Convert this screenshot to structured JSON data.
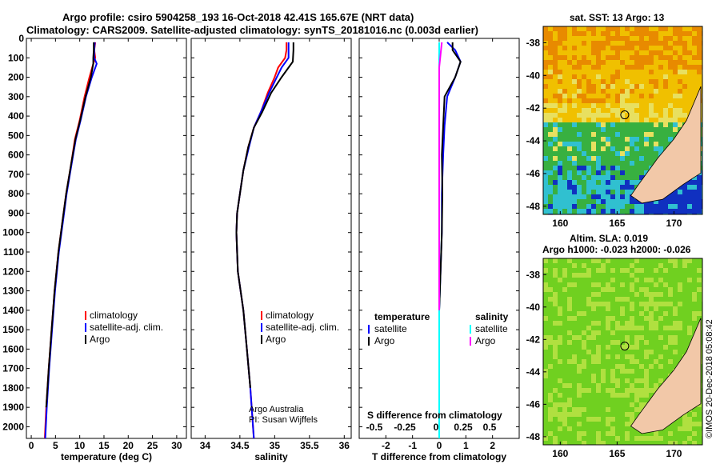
{
  "header": {
    "line1": "Argo profile: csiro 5904258_193 16-Oct-2018 42.41S 165.67E (NRT data)",
    "line2": "Climatology: CARS2009. Satellite-adjusted climatology: synTS_20181016.nc (0.003d earlier)"
  },
  "depth_ticks": [
    "0",
    "100",
    "200",
    "300",
    "400",
    "500",
    "600",
    "700",
    "800",
    "900",
    "1000",
    "1100",
    "1200",
    "1300",
    "1400",
    "1500",
    "1600",
    "1700",
    "1800",
    "1900",
    "2000"
  ],
  "chart_data": [
    {
      "type": "line",
      "name": "temperature",
      "xlabel": "temperature (deg C)",
      "ylabel": "depth",
      "xlim": [
        -1,
        32
      ],
      "ylim": [
        2060,
        0
      ],
      "xticks": [
        "0",
        "5",
        "10",
        "15",
        "20",
        "25",
        "30"
      ],
      "legend": [
        "climatology",
        "satellite-adj. clim.",
        "Argo"
      ],
      "series": [
        {
          "name": "climatology",
          "color": "#ff0000",
          "points": [
            [
              13.2,
              20
            ],
            [
              13.0,
              60
            ],
            [
              13.2,
              100
            ],
            [
              12.8,
              130
            ],
            [
              12.0,
              200
            ],
            [
              11.0,
              300
            ],
            [
              10.0,
              420
            ],
            [
              9.0,
              520
            ],
            [
              8.2,
              650
            ],
            [
              7.2,
              800
            ],
            [
              6.4,
              950
            ],
            [
              5.6,
              1100
            ],
            [
              4.8,
              1300
            ],
            [
              4.2,
              1500
            ],
            [
              3.6,
              1700
            ],
            [
              3.1,
              1900
            ],
            [
              2.8,
              2060
            ]
          ]
        },
        {
          "name": "satellite-adj. clim.",
          "color": "#0000ff",
          "points": [
            [
              13.1,
              20
            ],
            [
              13.0,
              60
            ],
            [
              13.0,
              100
            ],
            [
              13.5,
              130
            ],
            [
              12.5,
              200
            ],
            [
              11.3,
              300
            ],
            [
              10.2,
              420
            ],
            [
              9.2,
              520
            ],
            [
              8.3,
              650
            ],
            [
              7.3,
              800
            ],
            [
              6.5,
              950
            ],
            [
              5.7,
              1100
            ],
            [
              4.9,
              1300
            ],
            [
              4.3,
              1500
            ],
            [
              3.7,
              1700
            ],
            [
              3.2,
              1900
            ],
            [
              2.9,
              2060
            ]
          ]
        },
        {
          "name": "Argo",
          "color": "#000000",
          "points": [
            [
              12.9,
              20
            ],
            [
              12.9,
              60
            ],
            [
              12.8,
              100
            ],
            [
              12.8,
              130
            ],
            [
              12.3,
              200
            ],
            [
              11.2,
              300
            ],
            [
              10.1,
              420
            ],
            [
              9.1,
              520
            ],
            [
              8.2,
              650
            ],
            [
              7.2,
              800
            ],
            [
              6.4,
              950
            ],
            [
              5.6,
              1100
            ],
            [
              4.8,
              1300
            ],
            [
              4.2,
              1500
            ],
            [
              3.6,
              1700
            ],
            [
              3.1,
              1900
            ]
          ]
        }
      ]
    },
    {
      "type": "line",
      "name": "salinity",
      "xlabel": "salinity",
      "ylabel": "depth",
      "xlim": [
        33.8,
        36.1
      ],
      "ylim": [
        2060,
        0
      ],
      "xticks": [
        "34",
        "34.5",
        "35",
        "35.5",
        "36"
      ],
      "legend": [
        "climatology",
        "satellite-adj. clim.",
        "Argo"
      ],
      "annotations": [
        "Argo Australia",
        "PI: Susan Wijffels"
      ],
      "series": [
        {
          "name": "climatology",
          "color": "#ff0000",
          "points": [
            [
              35.17,
              20
            ],
            [
              35.17,
              60
            ],
            [
              35.15,
              100
            ],
            [
              35.05,
              150
            ],
            [
              35.0,
              200
            ],
            [
              34.9,
              280
            ],
            [
              34.8,
              380
            ],
            [
              34.7,
              460
            ],
            [
              34.62,
              560
            ],
            [
              34.55,
              680
            ],
            [
              34.5,
              800
            ],
            [
              34.46,
              900
            ],
            [
              34.45,
              1000
            ],
            [
              34.47,
              1200
            ],
            [
              34.55,
              1400
            ],
            [
              34.6,
              1600
            ],
            [
              34.65,
              1800
            ],
            [
              34.7,
              2060
            ]
          ]
        },
        {
          "name": "satellite-adj. clim.",
          "color": "#0000ff",
          "points": [
            [
              35.2,
              20
            ],
            [
              35.2,
              60
            ],
            [
              35.2,
              100
            ],
            [
              35.1,
              150
            ],
            [
              35.03,
              200
            ],
            [
              34.92,
              280
            ],
            [
              34.8,
              380
            ],
            [
              34.7,
              460
            ],
            [
              34.63,
              560
            ],
            [
              34.55,
              680
            ],
            [
              34.5,
              800
            ],
            [
              34.46,
              900
            ],
            [
              34.45,
              1000
            ],
            [
              34.47,
              1200
            ],
            [
              34.55,
              1400
            ],
            [
              34.6,
              1600
            ],
            [
              34.65,
              1800
            ],
            [
              34.7,
              2060
            ]
          ]
        },
        {
          "name": "Argo",
          "color": "#000000",
          "points": [
            [
              35.27,
              20
            ],
            [
              35.27,
              60
            ],
            [
              35.26,
              120
            ],
            [
              35.1,
              200
            ],
            [
              34.95,
              280
            ],
            [
              34.82,
              380
            ],
            [
              34.7,
              460
            ],
            [
              34.62,
              560
            ],
            [
              34.55,
              680
            ],
            [
              34.5,
              800
            ],
            [
              34.46,
              900
            ],
            [
              34.45,
              1000
            ],
            [
              34.47,
              1200
            ],
            [
              34.55,
              1400
            ],
            [
              34.6,
              1600
            ],
            [
              34.65,
              1800
            ]
          ]
        }
      ]
    },
    {
      "type": "line",
      "name": "differences",
      "xlabel": "T difference from climatology",
      "xlabel_top": "S difference from climatology",
      "ylabel": "depth",
      "xlim": [
        -3,
        3
      ],
      "ylim": [
        2060,
        0
      ],
      "xticks": [
        "-2",
        "-1",
        "0",
        "1",
        "2"
      ],
      "s_ticks": [
        "-0.5",
        "-0.25",
        "0",
        "0.25",
        "0.5"
      ],
      "legend_left_title": "temperature",
      "legend_right_title": "salinity",
      "legend_left": [
        "satellite",
        "Argo"
      ],
      "legend_right": [
        "satellite",
        "Argo"
      ],
      "series": [
        {
          "name": "T satellite",
          "color": "#0000ff",
          "points": [
            [
              0.3,
              20
            ],
            [
              0.6,
              60
            ],
            [
              0.8,
              120
            ],
            [
              0.6,
              200
            ],
            [
              0.3,
              300
            ],
            [
              0.2,
              450
            ],
            [
              0.15,
              600
            ],
            [
              0.1,
              800
            ],
            [
              0.1,
              1000
            ],
            [
              0.05,
              1200
            ],
            [
              0.0,
              1400
            ],
            [
              0.0,
              1600
            ],
            [
              0.0,
              1800
            ],
            [
              0.0,
              2060
            ]
          ]
        },
        {
          "name": "T Argo",
          "color": "#000000",
          "points": [
            [
              0.5,
              20
            ],
            [
              0.5,
              60
            ],
            [
              0.8,
              120
            ],
            [
              0.6,
              200
            ],
            [
              0.2,
              300
            ],
            [
              0.15,
              450
            ],
            [
              0.1,
              600
            ],
            [
              0.12,
              800
            ],
            [
              0.1,
              1000
            ],
            [
              0.05,
              1200
            ],
            [
              0.0,
              1400
            ]
          ]
        },
        {
          "name": "S satellite",
          "color": "#00ffff",
          "points": [
            [
              0.0,
              20
            ],
            [
              0.0,
              80
            ],
            [
              0.0,
              200
            ],
            [
              0.0,
              400
            ],
            [
              0.0,
              600
            ],
            [
              0.0,
              800
            ],
            [
              0.0,
              1000
            ],
            [
              0.0,
              1200
            ],
            [
              0.0,
              1400
            ],
            [
              0.0,
              1600
            ],
            [
              0.0,
              1800
            ],
            [
              0.0,
              2060
            ]
          ]
        },
        {
          "name": "S Argo",
          "color": "#ff00ff",
          "points": [
            [
              0.1,
              20
            ],
            [
              0.0,
              150
            ],
            [
              0.0,
              250
            ],
            [
              0.0,
              400
            ],
            [
              0.0,
              600
            ],
            [
              0.0,
              800
            ],
            [
              0.0,
              1000
            ],
            [
              0.0,
              1200
            ],
            [
              0.0,
              1400
            ]
          ]
        }
      ]
    }
  ],
  "maps": [
    {
      "name": "sst-map",
      "title": "sat. SST: 13 Argo: 13",
      "yticks": [
        "-38",
        "-40",
        "-42",
        "-44",
        "-46",
        "-48"
      ],
      "xticks": [
        "160",
        "165",
        "170"
      ],
      "colors": {
        "warm": "#e88a00",
        "mid": "#f0c000",
        "light": "#e8e060",
        "green": "#38b040",
        "cyan": "#30c0d0",
        "blue": "#1030c0",
        "land": "#f2c8a8"
      }
    },
    {
      "name": "sla-map",
      "title1": "Altim. SLA: 0.019",
      "title2": "Argo h1000: -0.023 h2000: -0.026",
      "yticks": [
        "-38",
        "-40",
        "-42",
        "-44",
        "-46",
        "-48"
      ],
      "xticks": [
        "160",
        "165",
        "170"
      ],
      "colors": {
        "green": "#70d020",
        "light": "#b0e040",
        "land": "#f2c8a8"
      }
    }
  ],
  "footer_stamp": "©IMOS 20-Dec-2018 05:08:42"
}
